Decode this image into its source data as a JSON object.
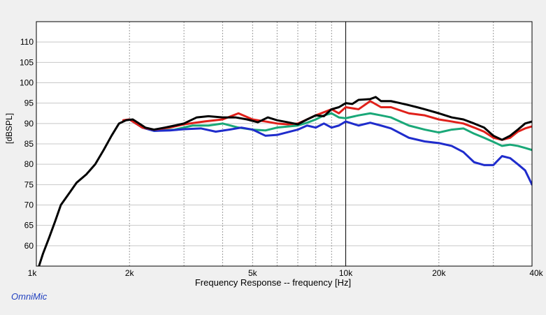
{
  "app": {
    "brand": "OmniMic"
  },
  "chart_data": {
    "type": "line",
    "title": "",
    "xlabel": "Frequency Response -- frequency [Hz]",
    "ylabel": "[dBSPL]",
    "x_scale": "log",
    "xlim": [
      1000,
      40000
    ],
    "ylim": [
      55,
      115
    ],
    "x_ticks": [
      {
        "value": 1000,
        "label": "1k"
      },
      {
        "value": 2000,
        "label": "2k"
      },
      {
        "value": 5000,
        "label": "5k"
      },
      {
        "value": 10000,
        "label": "10k"
      },
      {
        "value": 20000,
        "label": "20k"
      },
      {
        "value": 40000,
        "label": "40k"
      }
    ],
    "y_ticks": [
      60,
      65,
      70,
      75,
      80,
      85,
      90,
      95,
      100,
      105,
      110
    ],
    "grid": true,
    "colors": {
      "black": "#000000",
      "red": "#e0201a",
      "green": "#1aa878",
      "blue": "#1f2ccc"
    },
    "series": [
      {
        "color": "#1aa878",
        "points": [
          [
            2000,
            91
          ],
          [
            2200,
            89
          ],
          [
            2400,
            88.2
          ],
          [
            2800,
            88.5
          ],
          [
            3200,
            89.5
          ],
          [
            3600,
            89.5
          ],
          [
            4000,
            90
          ],
          [
            4500,
            89
          ],
          [
            5000,
            88.5
          ],
          [
            5500,
            88.3
          ],
          [
            6000,
            89
          ],
          [
            7000,
            89.5
          ],
          [
            7500,
            90.2
          ],
          [
            8000,
            91
          ],
          [
            8500,
            92
          ],
          [
            9000,
            92.5
          ],
          [
            9500,
            91.5
          ],
          [
            10000,
            91.3
          ],
          [
            11000,
            92
          ],
          [
            12000,
            92.5
          ],
          [
            13000,
            92
          ],
          [
            14000,
            91.5
          ],
          [
            16000,
            89.5
          ],
          [
            18000,
            88.5
          ],
          [
            20000,
            87.8
          ],
          [
            22000,
            88.5
          ],
          [
            24000,
            88.8
          ],
          [
            26000,
            87.5
          ],
          [
            28000,
            86.5
          ],
          [
            30000,
            85.5
          ],
          [
            32000,
            84.5
          ],
          [
            34000,
            84.8
          ],
          [
            36000,
            84.5
          ],
          [
            38000,
            84
          ],
          [
            40000,
            83.5
          ]
        ]
      },
      {
        "color": "#1f2ccc",
        "points": [
          [
            2000,
            91
          ],
          [
            2200,
            89
          ],
          [
            2400,
            88.2
          ],
          [
            2700,
            88.3
          ],
          [
            3000,
            88.6
          ],
          [
            3400,
            88.8
          ],
          [
            3800,
            88
          ],
          [
            4200,
            88.5
          ],
          [
            4600,
            89
          ],
          [
            5000,
            88.5
          ],
          [
            5500,
            87
          ],
          [
            6000,
            87.2
          ],
          [
            7000,
            88.5
          ],
          [
            7500,
            89.5
          ],
          [
            8000,
            89
          ],
          [
            8500,
            90
          ],
          [
            9000,
            89
          ],
          [
            9500,
            89.5
          ],
          [
            10000,
            90.5
          ],
          [
            11000,
            89.5
          ],
          [
            12000,
            90.2
          ],
          [
            13000,
            89.5
          ],
          [
            14000,
            88.8
          ],
          [
            16000,
            86.5
          ],
          [
            18000,
            85.6
          ],
          [
            20000,
            85.2
          ],
          [
            22000,
            84.5
          ],
          [
            24000,
            83
          ],
          [
            26000,
            80.5
          ],
          [
            28000,
            79.8
          ],
          [
            30000,
            79.8
          ],
          [
            32000,
            82
          ],
          [
            34000,
            81.5
          ],
          [
            36000,
            80
          ],
          [
            38000,
            78.5
          ],
          [
            40000,
            75
          ]
        ]
      },
      {
        "color": "#e0201a",
        "points": [
          [
            1910,
            90.8
          ],
          [
            2000,
            91
          ],
          [
            2200,
            89
          ],
          [
            2400,
            88.5
          ],
          [
            2700,
            89
          ],
          [
            3000,
            89.8
          ],
          [
            3500,
            90.5
          ],
          [
            4000,
            91
          ],
          [
            4500,
            92.5
          ],
          [
            5000,
            91
          ],
          [
            5500,
            90.5
          ],
          [
            6000,
            90
          ],
          [
            6500,
            89.8
          ],
          [
            7000,
            90
          ],
          [
            7500,
            91
          ],
          [
            8000,
            92
          ],
          [
            9000,
            93.5
          ],
          [
            9500,
            92.5
          ],
          [
            10000,
            94
          ],
          [
            11000,
            93.5
          ],
          [
            12000,
            95.5
          ],
          [
            13000,
            94
          ],
          [
            14000,
            94
          ],
          [
            16000,
            92.5
          ],
          [
            18000,
            92
          ],
          [
            20000,
            91
          ],
          [
            22000,
            90.5
          ],
          [
            24000,
            90
          ],
          [
            26000,
            89
          ],
          [
            28000,
            88
          ],
          [
            30000,
            86.5
          ],
          [
            32000,
            86
          ],
          [
            34000,
            86.5
          ],
          [
            36000,
            88
          ],
          [
            38000,
            88.8
          ],
          [
            40000,
            89.3
          ]
        ]
      },
      {
        "color": "#000000",
        "points": [
          [
            1000,
            53
          ],
          [
            1050,
            58
          ],
          [
            1100,
            62
          ],
          [
            1150,
            66
          ],
          [
            1200,
            70
          ],
          [
            1280,
            73
          ],
          [
            1350,
            75.5
          ],
          [
            1450,
            77.5
          ],
          [
            1550,
            80
          ],
          [
            1650,
            83.5
          ],
          [
            1750,
            87
          ],
          [
            1850,
            90
          ],
          [
            1950,
            90.8
          ],
          [
            2050,
            91
          ],
          [
            2150,
            90
          ],
          [
            2250,
            89
          ],
          [
            2400,
            88.5
          ],
          [
            2600,
            89
          ],
          [
            2800,
            89.5
          ],
          [
            3000,
            90
          ],
          [
            3300,
            91.5
          ],
          [
            3600,
            91.8
          ],
          [
            4000,
            91.5
          ],
          [
            4400,
            91.5
          ],
          [
            4800,
            91
          ],
          [
            5200,
            90.3
          ],
          [
            5600,
            91.5
          ],
          [
            6000,
            90.8
          ],
          [
            6500,
            90.3
          ],
          [
            7000,
            89.8
          ],
          [
            7500,
            91
          ],
          [
            8000,
            92
          ],
          [
            8500,
            91.8
          ],
          [
            9000,
            93.5
          ],
          [
            9500,
            94
          ],
          [
            10000,
            95
          ],
          [
            10500,
            94.8
          ],
          [
            11000,
            95.8
          ],
          [
            12000,
            96
          ],
          [
            12500,
            96.5
          ],
          [
            13000,
            95.5
          ],
          [
            14000,
            95.5
          ],
          [
            15000,
            95
          ],
          [
            16000,
            94.5
          ],
          [
            17000,
            94
          ],
          [
            18000,
            93.5
          ],
          [
            20000,
            92.5
          ],
          [
            22000,
            91.5
          ],
          [
            24000,
            91
          ],
          [
            26000,
            90
          ],
          [
            28000,
            89
          ],
          [
            30000,
            87
          ],
          [
            32000,
            86
          ],
          [
            34000,
            87
          ],
          [
            36000,
            88.5
          ],
          [
            38000,
            90
          ],
          [
            40000,
            90.5
          ]
        ]
      }
    ]
  }
}
